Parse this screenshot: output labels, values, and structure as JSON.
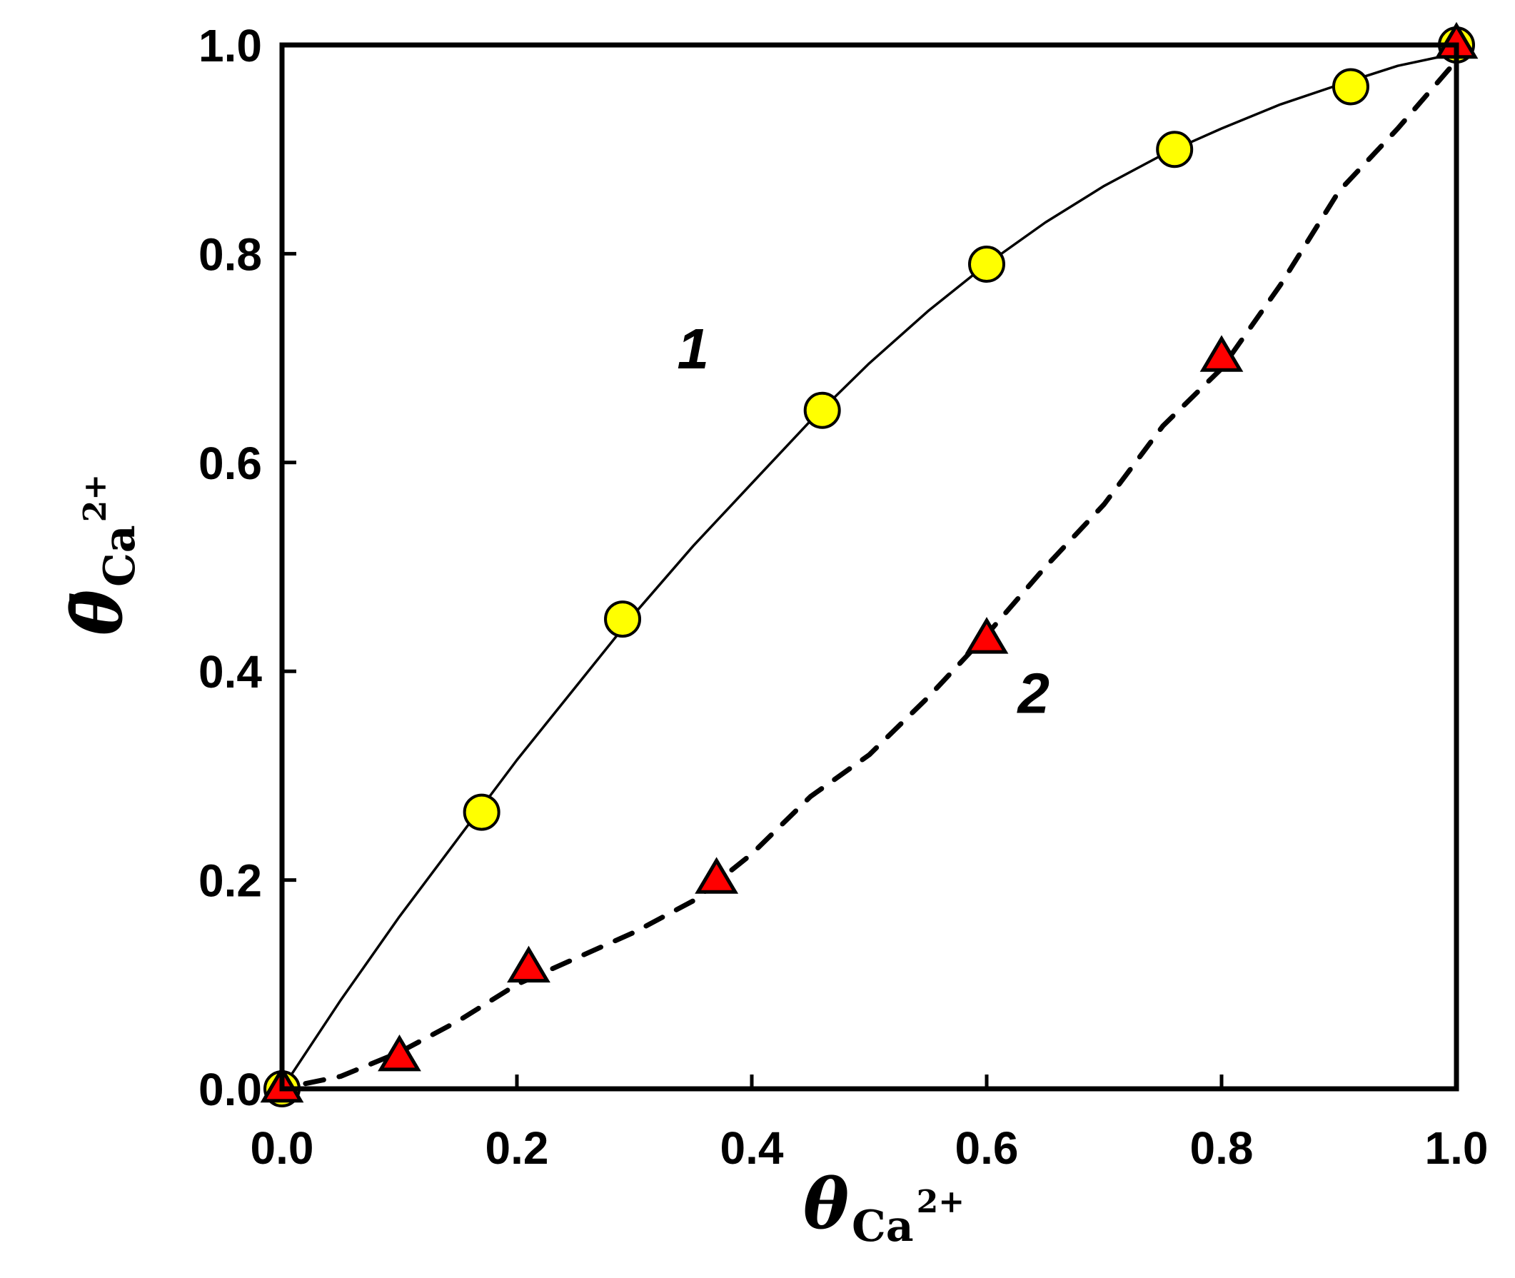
{
  "chart_data": {
    "type": "scatter",
    "xlim": [
      0,
      1
    ],
    "ylim": [
      0,
      1
    ],
    "x_ticks": [
      "0.0",
      "0.2",
      "0.4",
      "0.6",
      "0.8",
      "1.0"
    ],
    "y_ticks": [
      "0.0",
      "0.2",
      "0.4",
      "0.6",
      "0.8",
      "1.0"
    ],
    "xlabel": {
      "symbol": "θ",
      "sub": "Ca",
      "sup": "2+"
    },
    "ylabel": {
      "symbol": "θ̄",
      "sub": "Ca",
      "sup": "2+"
    },
    "grid": false,
    "series": [
      {
        "label": "1",
        "marker": "circle",
        "marker_color": "#ffff00",
        "line_style": "solid",
        "points": [
          [
            0.0,
            0.0
          ],
          [
            0.17,
            0.265
          ],
          [
            0.29,
            0.45
          ],
          [
            0.46,
            0.65
          ],
          [
            0.6,
            0.79
          ],
          [
            0.76,
            0.9
          ],
          [
            0.91,
            0.96
          ],
          [
            1.0,
            1.0
          ]
        ],
        "curve": [
          [
            0.0,
            0.0
          ],
          [
            0.05,
            0.085
          ],
          [
            0.1,
            0.165
          ],
          [
            0.15,
            0.24
          ],
          [
            0.2,
            0.315
          ],
          [
            0.25,
            0.385
          ],
          [
            0.3,
            0.455
          ],
          [
            0.35,
            0.52
          ],
          [
            0.4,
            0.58
          ],
          [
            0.45,
            0.64
          ],
          [
            0.5,
            0.695
          ],
          [
            0.55,
            0.745
          ],
          [
            0.6,
            0.79
          ],
          [
            0.65,
            0.83
          ],
          [
            0.7,
            0.865
          ],
          [
            0.75,
            0.895
          ],
          [
            0.8,
            0.92
          ],
          [
            0.85,
            0.943
          ],
          [
            0.9,
            0.962
          ],
          [
            0.95,
            0.98
          ],
          [
            1.0,
            0.992
          ]
        ]
      },
      {
        "label": "2",
        "marker": "triangle",
        "marker_color": "#ff0000",
        "line_style": "dashed",
        "points": [
          [
            0.0,
            0.0
          ],
          [
            0.1,
            0.03
          ],
          [
            0.21,
            0.115
          ],
          [
            0.37,
            0.2
          ],
          [
            0.6,
            0.43
          ],
          [
            0.8,
            0.7
          ],
          [
            1.0,
            1.0
          ]
        ],
        "curve": [
          [
            0.02,
            0.005
          ],
          [
            0.05,
            0.012
          ],
          [
            0.1,
            0.035
          ],
          [
            0.15,
            0.065
          ],
          [
            0.2,
            0.1
          ],
          [
            0.25,
            0.125
          ],
          [
            0.3,
            0.15
          ],
          [
            0.35,
            0.18
          ],
          [
            0.4,
            0.225
          ],
          [
            0.45,
            0.28
          ],
          [
            0.5,
            0.32
          ],
          [
            0.55,
            0.375
          ],
          [
            0.6,
            0.435
          ],
          [
            0.65,
            0.5
          ],
          [
            0.7,
            0.56
          ],
          [
            0.75,
            0.635
          ],
          [
            0.8,
            0.69
          ],
          [
            0.85,
            0.77
          ],
          [
            0.9,
            0.86
          ],
          [
            0.95,
            0.92
          ],
          [
            1.0,
            0.985
          ]
        ]
      }
    ]
  }
}
